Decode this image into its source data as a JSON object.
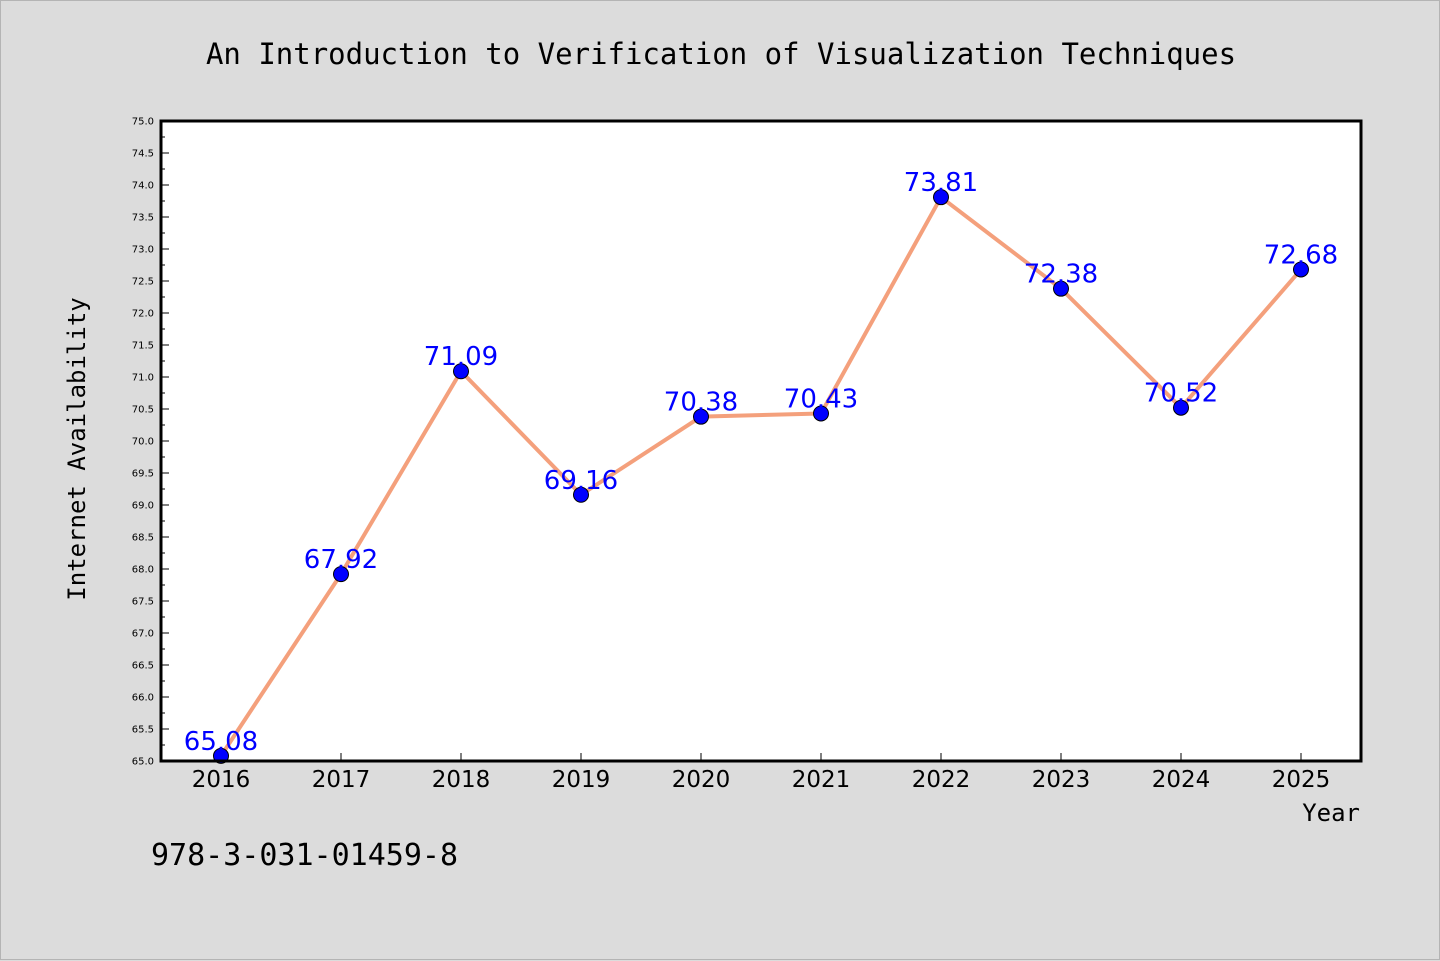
{
  "chart_data": {
    "type": "line",
    "title": "An Introduction to Verification of Visualization Techniques",
    "xlabel": "Year",
    "ylabel": "Internet Availability",
    "categories": [
      "2016",
      "2017",
      "2018",
      "2019",
      "2020",
      "2021",
      "2022",
      "2023",
      "2024",
      "2025"
    ],
    "values": [
      65.08,
      67.92,
      71.09,
      69.16,
      70.38,
      70.43,
      73.81,
      72.38,
      70.52,
      72.68
    ],
    "data_labels": [
      "65.08",
      "67.92",
      "71.09",
      "69.16",
      "70.38",
      "70.43",
      "73.81",
      "72.38",
      "70.52",
      "72.68"
    ],
    "ylim": [
      65.0,
      75.0
    ],
    "yticks": [
      "65.0",
      "65.5",
      "66.0",
      "66.5",
      "67.0",
      "67.5",
      "68.0",
      "68.5",
      "69.0",
      "69.5",
      "70.0",
      "70.5",
      "71.0",
      "71.5",
      "72.0",
      "72.5",
      "73.0",
      "73.5",
      "74.0",
      "74.5",
      "75.0"
    ],
    "grid": false,
    "line_color": "#f4a07c",
    "marker_color": "#0000ff",
    "label_color": "#0000ff",
    "background_color": "#dcdcdc",
    "plot_background_color": "#ffffff"
  },
  "annotation": "978-3-031-01459-8"
}
